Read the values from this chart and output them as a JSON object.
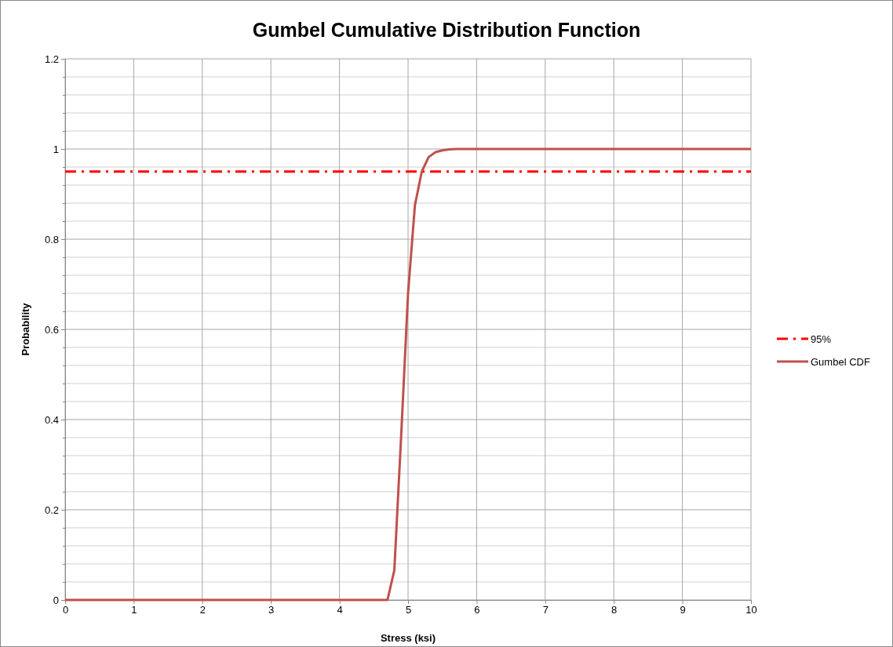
{
  "chart_data": {
    "type": "line",
    "title": "Gumbel Cumulative Distribution Function",
    "xlabel": "Stress (ksi)",
    "ylabel": "Probability",
    "xlim": [
      0,
      10
    ],
    "xticks": [
      0,
      1,
      2,
      3,
      4,
      5,
      6,
      7,
      8,
      9,
      10
    ],
    "ylim": [
      0,
      1.2
    ],
    "yticks": [
      0,
      {
        "value": 0.04,
        "label": null
      },
      {
        "value": 0.08,
        "label": null
      },
      {
        "value": 0.12,
        "label": null
      },
      {
        "value": 0.16,
        "label": null
      },
      0.2,
      {
        "value": 0.24,
        "label": null
      },
      {
        "value": 0.28,
        "label": null
      },
      {
        "value": 0.32,
        "label": null
      },
      {
        "value": 0.36,
        "label": null
      },
      0.4,
      {
        "value": 0.44,
        "label": null
      },
      {
        "value": 0.48,
        "label": null
      },
      {
        "value": 0.52,
        "label": null
      },
      {
        "value": 0.56,
        "label": null
      },
      0.6,
      {
        "value": 0.64,
        "label": null
      },
      {
        "value": 0.68,
        "label": null
      },
      {
        "value": 0.72,
        "label": null
      },
      {
        "value": 0.76,
        "label": null
      },
      0.8,
      {
        "value": 0.84,
        "label": null
      },
      {
        "value": 0.88,
        "label": null
      },
      {
        "value": 0.92,
        "label": null
      },
      {
        "value": 0.96,
        "label": null
      },
      1,
      {
        "value": 1.04,
        "label": null
      },
      {
        "value": 1.08,
        "label": null
      },
      {
        "value": 1.12,
        "label": null
      },
      {
        "value": 1.16,
        "label": null
      },
      1.2
    ],
    "grid": true,
    "legend": "right",
    "marker": "none",
    "series": [
      {
        "name": "95%",
        "color": "#ff0000",
        "line_style": "dashed",
        "x": [
          0,
          10
        ],
        "values": [
          0.95,
          0.95
        ]
      },
      {
        "name": "Gumbel CDF",
        "color": "#c0504d",
        "line_style": "solid",
        "x": [
          0,
          4.7,
          4.8,
          4.9,
          5.0,
          5.1,
          5.2,
          5.3,
          5.4,
          5.5,
          5.6,
          5.7,
          10
        ],
        "values": [
          0,
          0,
          0.066,
          0.365,
          0.68,
          0.875,
          0.95,
          0.982,
          0.993,
          0.997,
          0.999,
          1,
          1
        ]
      }
    ]
  }
}
